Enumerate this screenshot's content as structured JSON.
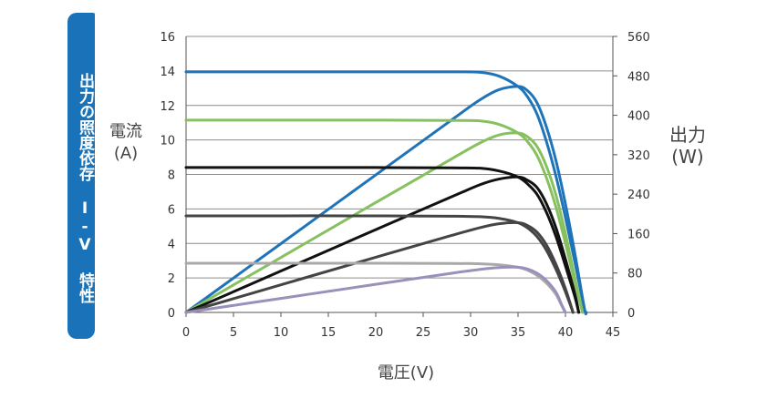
{
  "side_tab": {
    "label": "出力の照度依存 I-V 特性"
  },
  "chart_data": {
    "type": "line",
    "title": "",
    "xlabel": "電圧(V)",
    "ylabel_left": "電流(A)",
    "ylabel_right": "出力(W)",
    "xlim": [
      0,
      45
    ],
    "ylim_left": [
      0,
      16
    ],
    "ylim_right": [
      0,
      560
    ],
    "x_ticks": [
      0,
      5,
      10,
      15,
      20,
      25,
      30,
      35,
      40,
      45
    ],
    "y_left_ticks": [
      0,
      2,
      4,
      6,
      8,
      10,
      12,
      14,
      16
    ],
    "y_right_ticks": [
      0,
      80,
      160,
      240,
      320,
      400,
      480,
      560
    ],
    "grid": "horizontal",
    "series": [
      {
        "kind": "current",
        "axis": "left",
        "color": "#1f74b9",
        "points": [
          [
            0,
            13.95
          ],
          [
            10,
            13.95
          ],
          [
            20,
            13.95
          ],
          [
            28,
            13.95
          ],
          [
            31,
            13.92
          ],
          [
            33,
            13.7
          ],
          [
            35,
            13.1
          ],
          [
            36,
            12.5
          ],
          [
            37,
            11.5
          ],
          [
            38,
            9.9
          ],
          [
            39,
            7.9
          ],
          [
            40,
            5.5
          ],
          [
            41,
            2.9
          ],
          [
            42,
            0.2
          ],
          [
            42.2,
            0
          ]
        ]
      },
      {
        "kind": "power",
        "axis": "right",
        "color": "#1f74b9",
        "points": [
          [
            0,
            0
          ],
          [
            10,
            139.5
          ],
          [
            20,
            279
          ],
          [
            28,
            390.6
          ],
          [
            31,
            431.5
          ],
          [
            33,
            452
          ],
          [
            35,
            458.5
          ],
          [
            36,
            450
          ],
          [
            37,
            425.5
          ],
          [
            38,
            376
          ],
          [
            39,
            308
          ],
          [
            40,
            220
          ],
          [
            41,
            119
          ],
          [
            42,
            8
          ],
          [
            42.2,
            0
          ]
        ]
      },
      {
        "kind": "current",
        "axis": "left",
        "color": "#86c05f",
        "points": [
          [
            0,
            11.15
          ],
          [
            10,
            11.15
          ],
          [
            20,
            11.15
          ],
          [
            28,
            11.13
          ],
          [
            31,
            11.1
          ],
          [
            33,
            10.9
          ],
          [
            35,
            10.4
          ],
          [
            36,
            9.9
          ],
          [
            37,
            9.1
          ],
          [
            38,
            7.8
          ],
          [
            39,
            6.1
          ],
          [
            40,
            4.0
          ],
          [
            41,
            1.7
          ],
          [
            41.8,
            0
          ]
        ]
      },
      {
        "kind": "power",
        "axis": "right",
        "color": "#86c05f",
        "points": [
          [
            0,
            0
          ],
          [
            10,
            111.5
          ],
          [
            20,
            223
          ],
          [
            28,
            311.6
          ],
          [
            31,
            344
          ],
          [
            33,
            360
          ],
          [
            35,
            364
          ],
          [
            36,
            356.4
          ],
          [
            37,
            336.7
          ],
          [
            38,
            296.4
          ],
          [
            39,
            238
          ],
          [
            40,
            160
          ],
          [
            41,
            69.7
          ],
          [
            41.8,
            0
          ]
        ]
      },
      {
        "kind": "current",
        "axis": "left",
        "color": "#111111",
        "points": [
          [
            0,
            8.4
          ],
          [
            10,
            8.4
          ],
          [
            20,
            8.4
          ],
          [
            28,
            8.38
          ],
          [
            31,
            8.36
          ],
          [
            33,
            8.2
          ],
          [
            35,
            7.85
          ],
          [
            36,
            7.45
          ],
          [
            37,
            6.85
          ],
          [
            38,
            5.8
          ],
          [
            39,
            4.4
          ],
          [
            40,
            2.7
          ],
          [
            41,
            0.9
          ],
          [
            41.4,
            0
          ]
        ]
      },
      {
        "kind": "power",
        "axis": "right",
        "color": "#111111",
        "points": [
          [
            0,
            0
          ],
          [
            10,
            84
          ],
          [
            20,
            168
          ],
          [
            28,
            234.6
          ],
          [
            31,
            259.2
          ],
          [
            33,
            270.6
          ],
          [
            35,
            274.8
          ],
          [
            36,
            268.2
          ],
          [
            37,
            253.5
          ],
          [
            38,
            220.4
          ],
          [
            39,
            171.6
          ],
          [
            40,
            108
          ],
          [
            41,
            36.9
          ],
          [
            41.4,
            0
          ]
        ]
      },
      {
        "kind": "current",
        "axis": "left",
        "color": "#444444",
        "points": [
          [
            0,
            5.6
          ],
          [
            10,
            5.6
          ],
          [
            20,
            5.6
          ],
          [
            28,
            5.58
          ],
          [
            31,
            5.55
          ],
          [
            33,
            5.45
          ],
          [
            35,
            5.2
          ],
          [
            36,
            4.9
          ],
          [
            37,
            4.4
          ],
          [
            38,
            3.6
          ],
          [
            39,
            2.5
          ],
          [
            40,
            1.2
          ],
          [
            40.8,
            0
          ]
        ]
      },
      {
        "kind": "power",
        "axis": "right",
        "color": "#444444",
        "points": [
          [
            0,
            0
          ],
          [
            10,
            56
          ],
          [
            20,
            112
          ],
          [
            28,
            156.2
          ],
          [
            31,
            172
          ],
          [
            33,
            179.9
          ],
          [
            35,
            182
          ],
          [
            36,
            176.4
          ],
          [
            37,
            162.8
          ],
          [
            38,
            136.8
          ],
          [
            39,
            97.5
          ],
          [
            40,
            48
          ],
          [
            40.8,
            0
          ]
        ]
      },
      {
        "kind": "current",
        "axis": "left",
        "color": "#a9a9a9",
        "points": [
          [
            0,
            2.85
          ],
          [
            10,
            2.85
          ],
          [
            20,
            2.85
          ],
          [
            28,
            2.84
          ],
          [
            31,
            2.82
          ],
          [
            33,
            2.76
          ],
          [
            35,
            2.62
          ],
          [
            36,
            2.45
          ],
          [
            37,
            2.15
          ],
          [
            38,
            1.7
          ],
          [
            39,
            1.05
          ],
          [
            39.6,
            0.4
          ],
          [
            40,
            0
          ]
        ]
      },
      {
        "kind": "power",
        "axis": "right",
        "color": "#9b8fbb",
        "points": [
          [
            0,
            0
          ],
          [
            10,
            28.5
          ],
          [
            20,
            57
          ],
          [
            28,
            79.5
          ],
          [
            31,
            87.4
          ],
          [
            33,
            91.1
          ],
          [
            35,
            91.7
          ],
          [
            36,
            88.2
          ],
          [
            37,
            79.6
          ],
          [
            38,
            64.6
          ],
          [
            39,
            41
          ],
          [
            39.6,
            15.8
          ],
          [
            40,
            0
          ]
        ]
      }
    ]
  }
}
